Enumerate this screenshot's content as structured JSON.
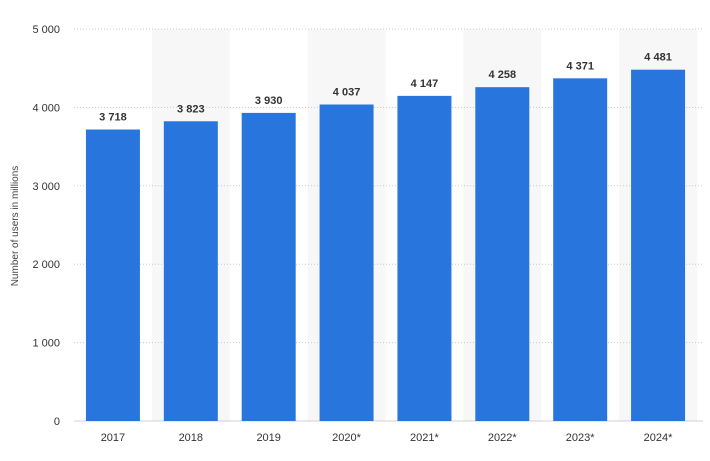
{
  "chart_data": {
    "type": "bar",
    "title": "",
    "xlabel": "",
    "ylabel": "Number of users in millions",
    "categories": [
      "2017",
      "2018",
      "2019",
      "2020*",
      "2021*",
      "2022*",
      "2023*",
      "2024*"
    ],
    "values": [
      3718,
      3823,
      3930,
      4037,
      4147,
      4258,
      4371,
      4481
    ],
    "value_labels": [
      "3 718",
      "3 823",
      "3 930",
      "4 037",
      "4 147",
      "4 258",
      "4 371",
      "4 481"
    ],
    "ylim": [
      0,
      5000
    ],
    "yticks": [
      0,
      1000,
      2000,
      3000,
      4000,
      5000
    ],
    "ytick_labels": [
      "0",
      "1 000",
      "2 000",
      "3 000",
      "4 000",
      "5 000"
    ],
    "grid": true,
    "legend": "none",
    "colors": {
      "bar": "#2876dd",
      "band": "#f7f7f7",
      "grid": "#c8c8c8"
    }
  }
}
